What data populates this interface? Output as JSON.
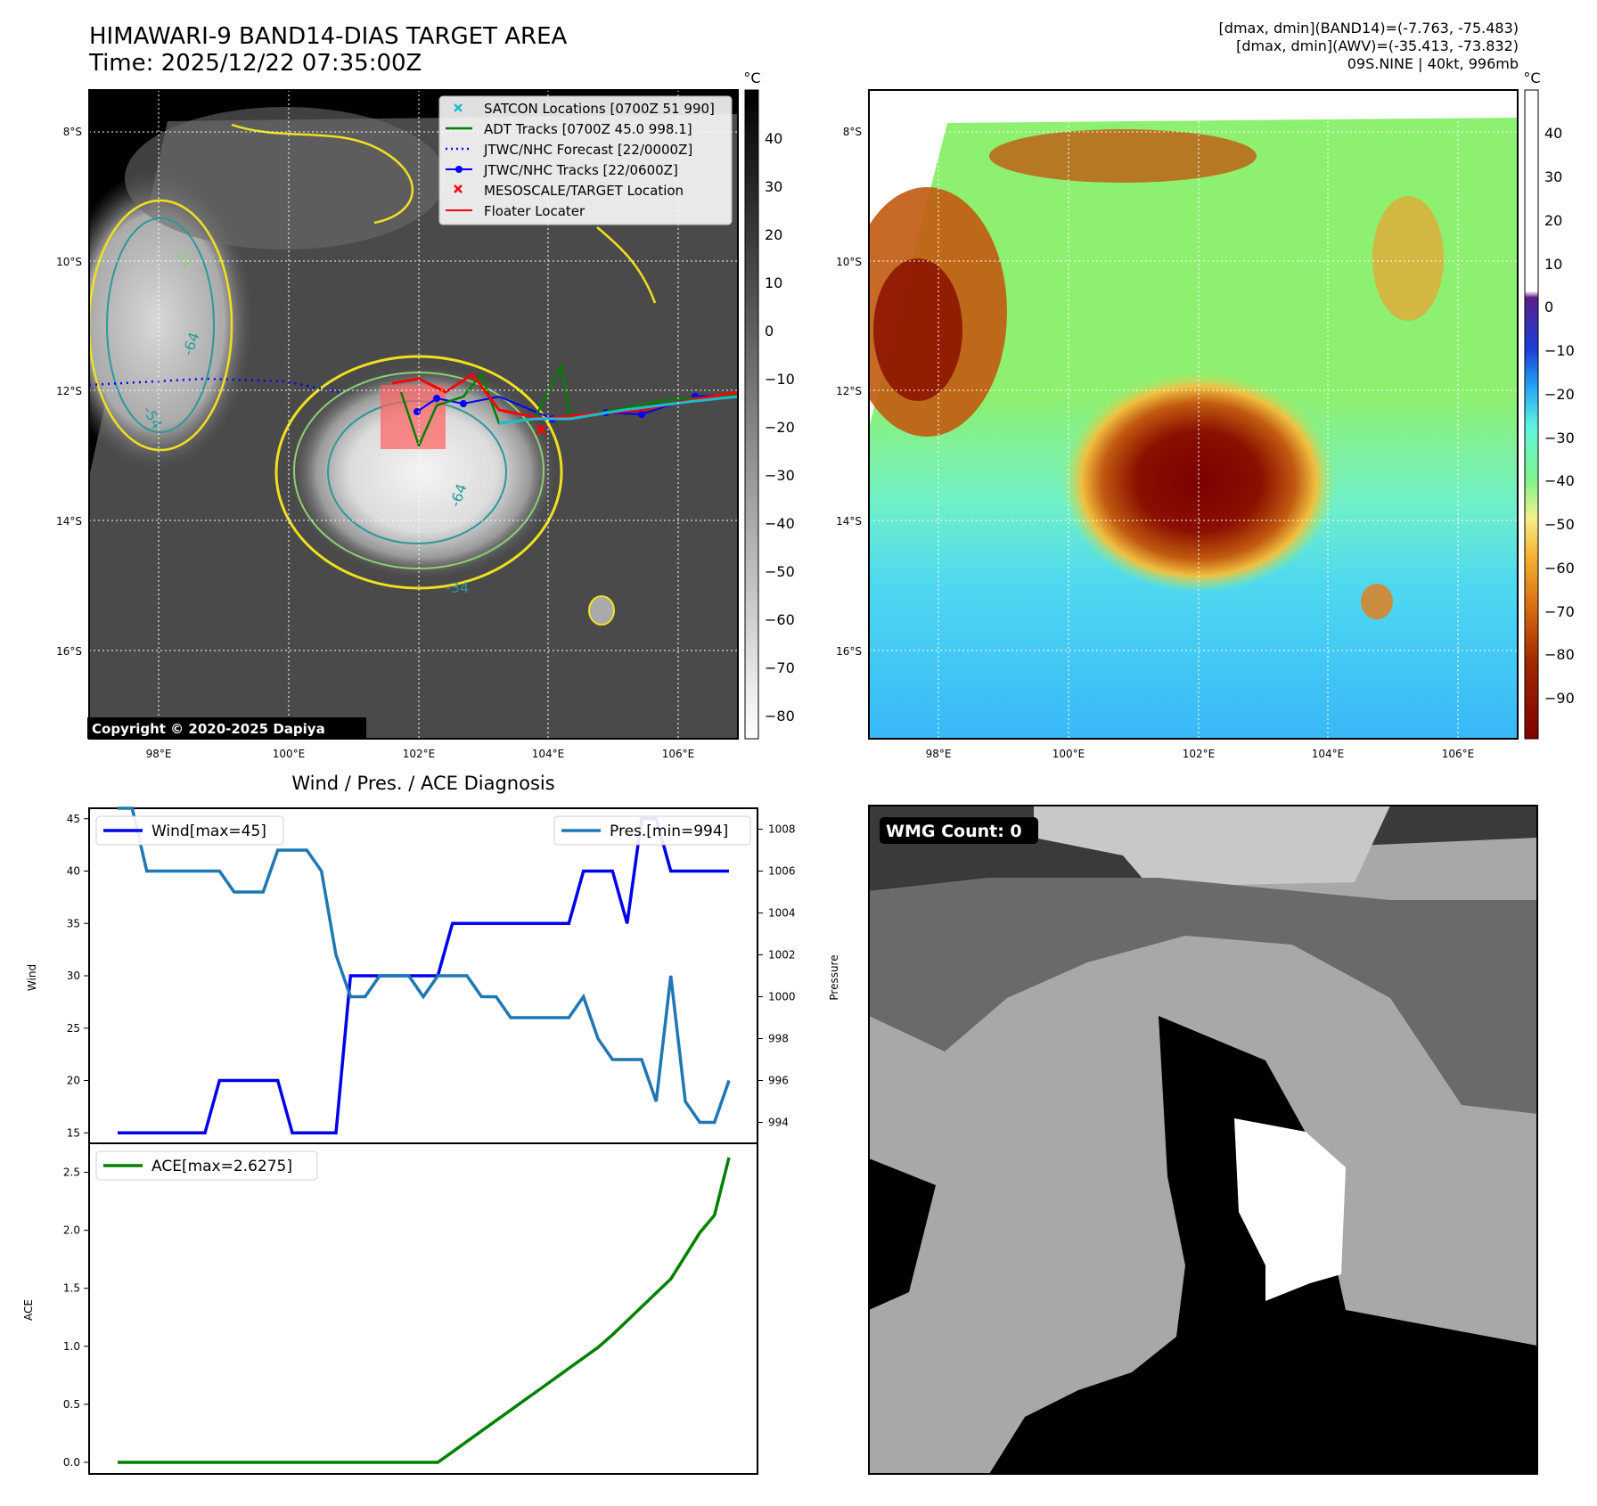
{
  "header": {
    "title": "HIMAWARI-9 BAND14-DIAS TARGET AREA",
    "time": "Time: 2025/12/22 07:35:00Z",
    "info_lines": [
      "[dmax, dmin](BAND14)=(-7.763, -75.483)",
      "[dmax, dmin](AWV)=(-35.413, -73.832)",
      "09S.NINE | 40kt, 996mb"
    ]
  },
  "colors": {
    "wind": "#0000ee",
    "pressure": "#1f77b4",
    "ace": "#008000",
    "satcon": "#17becf",
    "adt": "#008000",
    "forecast": "#0000ff",
    "tracks": "#0000ff",
    "target": "#ff0000",
    "floater": "#ff0000"
  },
  "map": {
    "lon_ticks": [
      "98°E",
      "100°E",
      "102°E",
      "104°E",
      "106°E"
    ],
    "lat_ticks": [
      "8°S",
      "10°S",
      "12°S",
      "14°S",
      "16°S"
    ],
    "copyright": "Copyright © 2020-2025 Dapiya",
    "contour_labels": [
      "-64",
      "-64",
      "-54",
      "-31",
      "-64",
      "-34"
    ],
    "legend": [
      {
        "label": "SATCON Locations [0700Z 51 990]",
        "marker": "x",
        "color": "#17becf"
      },
      {
        "label": "ADT Tracks [0700Z 45.0 998.1]",
        "marker": "line",
        "color": "#008000"
      },
      {
        "label": "JTWC/NHC Forecast [22/0000Z]",
        "marker": "dotted",
        "color": "#0000ff"
      },
      {
        "label": "JTWC/NHC Tracks [22/0600Z]",
        "marker": "line-dot",
        "color": "#0000ff"
      },
      {
        "label": "MESOSCALE/TARGET Location",
        "marker": "x",
        "color": "#ff0000"
      },
      {
        "label": "Floater Locater",
        "marker": "line",
        "color": "#ff0000"
      }
    ]
  },
  "colorbar_ir": {
    "unit": "°C",
    "ticks": [
      "40",
      "30",
      "20",
      "10",
      "0",
      "−10",
      "−20",
      "−30",
      "−40",
      "−50",
      "−60",
      "−70",
      "−80"
    ]
  },
  "colorbar_awv": {
    "unit": "°C",
    "ticks": [
      "40",
      "30",
      "20",
      "10",
      "0",
      "−10",
      "−20",
      "−30",
      "−40",
      "−50",
      "−60",
      "−70",
      "−80",
      "−90"
    ]
  },
  "wmg": {
    "label": "WMG Count: 0"
  },
  "chart_data": [
    {
      "type": "line",
      "title": "Wind / Pres. / ACE Diagnosis",
      "ylabel": "Wind",
      "ylabel_right": "Pressure",
      "ylim": [
        14,
        46
      ],
      "ylim_right": [
        993,
        1009
      ],
      "yticks": [
        15,
        20,
        25,
        30,
        35,
        40,
        45
      ],
      "yticks_right": [
        994,
        996,
        998,
        1000,
        1002,
        1004,
        1006,
        1008
      ],
      "x": [
        0,
        1,
        2,
        3,
        4,
        5,
        6,
        7,
        8,
        9,
        10,
        11,
        12,
        13,
        14,
        15,
        16,
        17,
        18,
        19,
        20,
        21,
        22,
        23,
        24,
        25,
        26,
        27,
        28,
        29,
        30,
        31,
        32,
        33,
        34,
        35,
        36,
        37,
        38,
        39,
        40,
        41,
        42
      ],
      "series": [
        {
          "name": "Wind[max=45]",
          "axis": "left",
          "values": [
            15,
            15,
            15,
            15,
            15,
            15,
            15,
            20,
            20,
            20,
            20,
            20,
            15,
            15,
            15,
            15,
            30,
            30,
            30,
            30,
            30,
            30,
            30,
            35,
            35,
            35,
            35,
            35,
            35,
            35,
            35,
            35,
            40,
            40,
            40,
            35,
            45,
            45,
            40,
            40,
            40,
            40,
            40
          ]
        },
        {
          "name": "Pres.[min=994]",
          "axis": "right",
          "values": [
            1009,
            1009,
            1006,
            1006,
            1006,
            1006,
            1006,
            1006,
            1005,
            1005,
            1005,
            1007,
            1007,
            1007,
            1006,
            1002,
            1000,
            1000,
            1001,
            1001,
            1001,
            1000,
            1001,
            1001,
            1001,
            1000,
            1000,
            999,
            999,
            999,
            999,
            999,
            1000,
            998,
            997,
            997,
            997,
            995,
            1001,
            995,
            994,
            994,
            996
          ]
        }
      ]
    },
    {
      "type": "line",
      "ylabel": "ACE",
      "ylim": [
        -0.1,
        2.75
      ],
      "yticks": [
        0.0,
        0.5,
        1.0,
        1.5,
        2.0,
        2.5
      ],
      "x": [
        0,
        1,
        2,
        3,
        4,
        5,
        6,
        7,
        8,
        9,
        10,
        11,
        12,
        13,
        14,
        15,
        16,
        17,
        18,
        19,
        20,
        21,
        22,
        23,
        24,
        25,
        26,
        27,
        28,
        29,
        30,
        31,
        32,
        33,
        34,
        35,
        36,
        37,
        38,
        39,
        40,
        41,
        42
      ],
      "series": [
        {
          "name": "ACE[max=2.6275]",
          "values": [
            0,
            0,
            0,
            0,
            0,
            0,
            0,
            0,
            0,
            0,
            0,
            0,
            0,
            0,
            0,
            0,
            0,
            0,
            0,
            0,
            0,
            0,
            0,
            0.09,
            0.18,
            0.27,
            0.36,
            0.45,
            0.54,
            0.63,
            0.72,
            0.81,
            0.9,
            0.99,
            1.1,
            1.22,
            1.34,
            1.46,
            1.58,
            1.78,
            1.98,
            2.13,
            2.6275
          ]
        }
      ]
    }
  ]
}
